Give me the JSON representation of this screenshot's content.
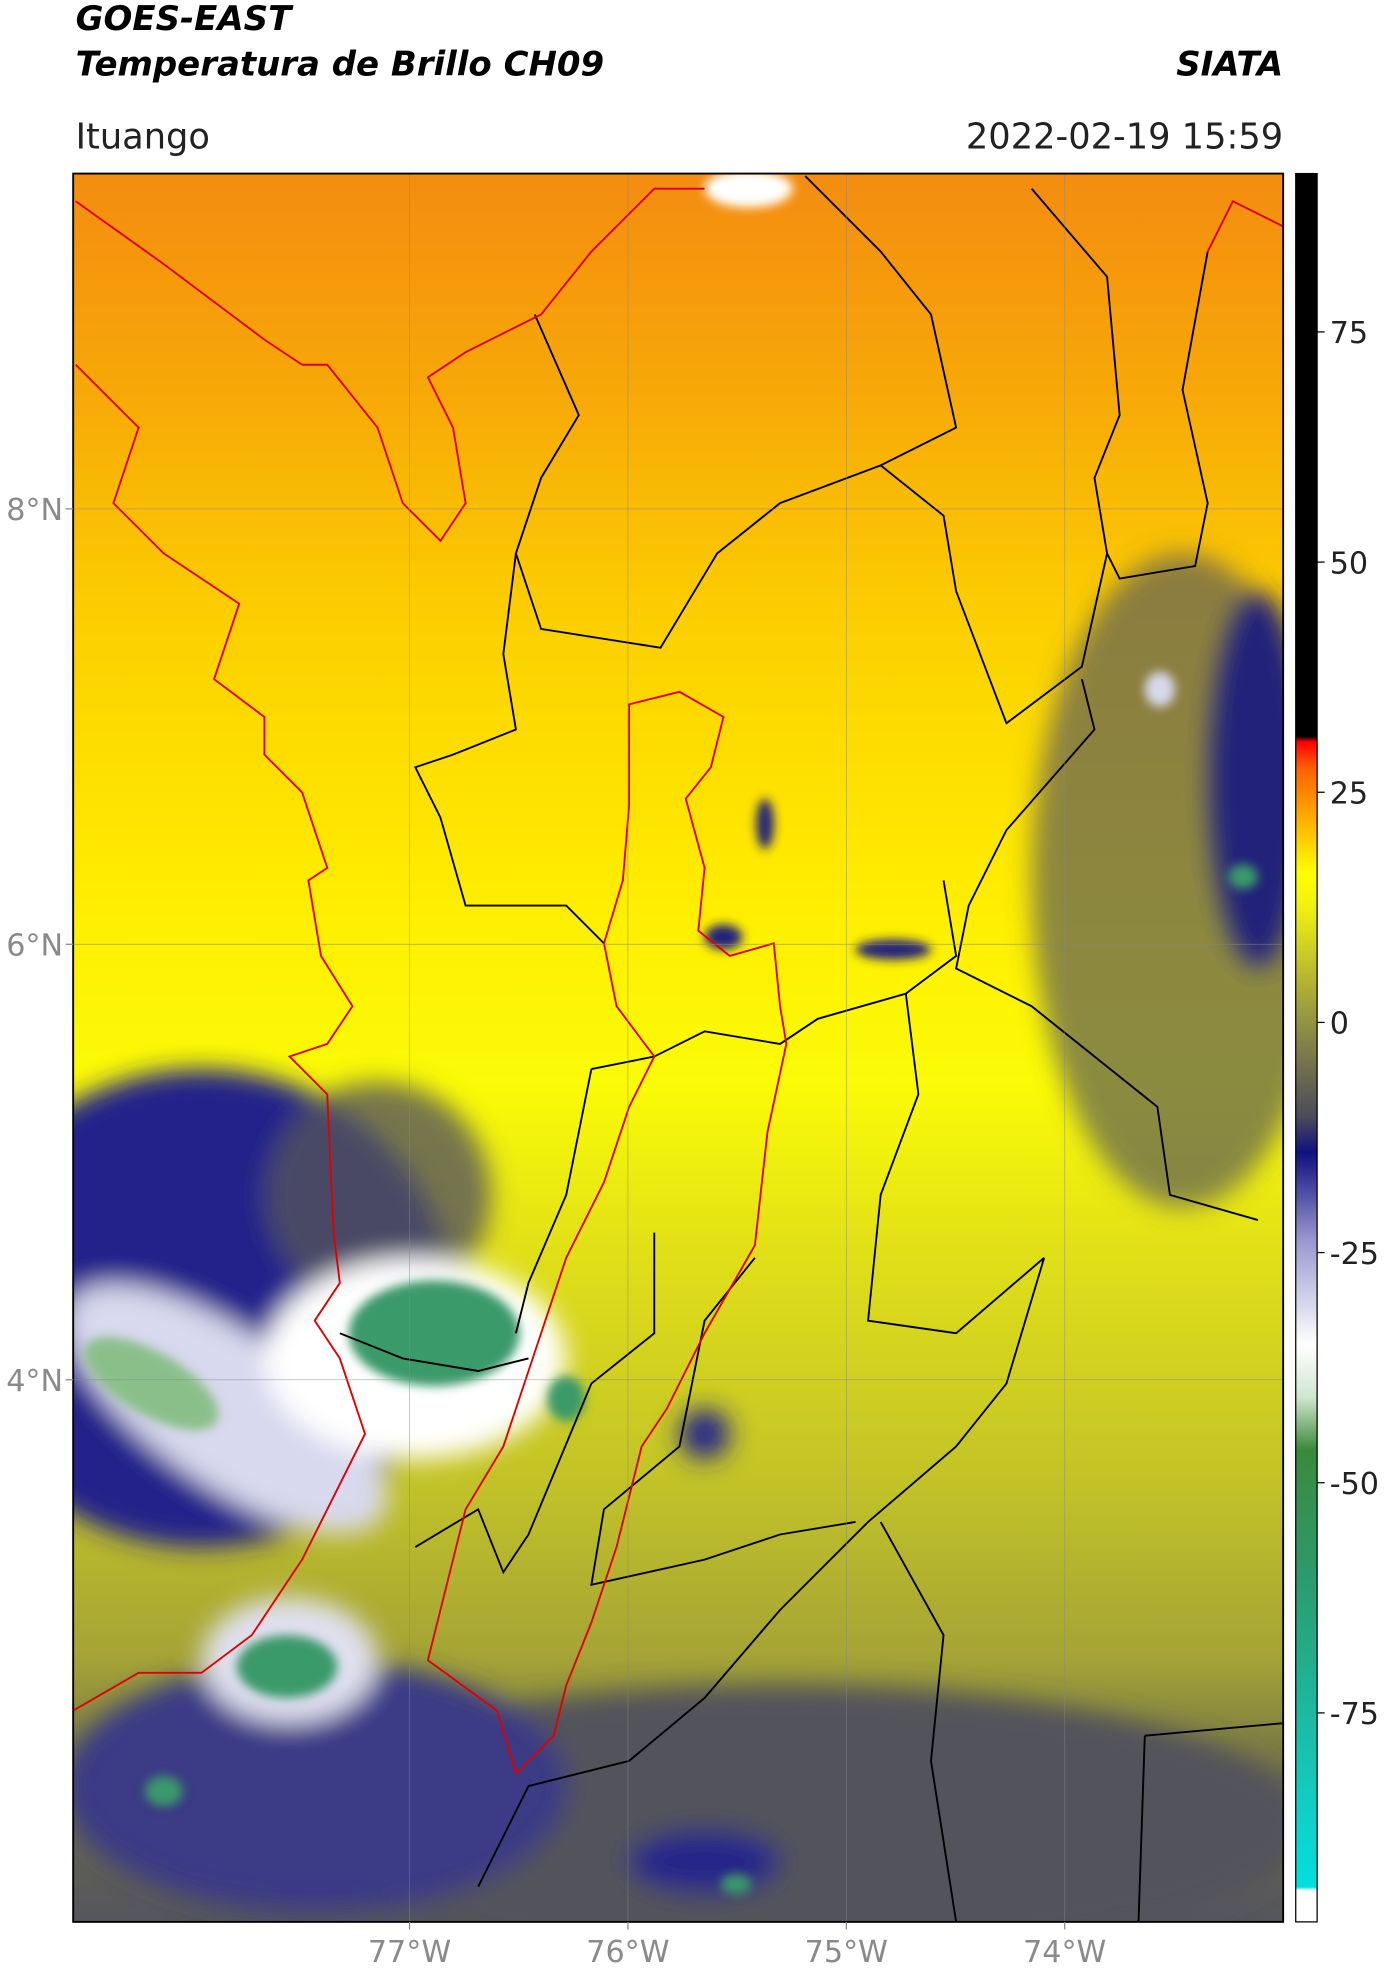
{
  "header": {
    "title": "GOES-EAST",
    "subtitle": "Temperatura de Brillo CH09",
    "agency": "SIATA",
    "location": "Ituango",
    "datetime": "2022-02-19 15:59"
  },
  "map": {
    "xlim": [
      -78.54,
      -73.0
    ],
    "ylim": [
      1.51,
      9.54
    ],
    "xticks": [
      {
        "value": -77,
        "label": "77°W"
      },
      {
        "value": -76,
        "label": "76°W"
      },
      {
        "value": -75,
        "label": "75°W"
      },
      {
        "value": -74,
        "label": "74°W"
      }
    ],
    "yticks": [
      {
        "value": 4,
        "label": "4°N"
      },
      {
        "value": 6,
        "label": "6°N"
      },
      {
        "value": 8,
        "label": "8°N"
      }
    ],
    "grid": true
  },
  "colorbar": {
    "lim": [
      -97.7,
      92.2
    ],
    "ticks": [
      -75,
      -50,
      -25,
      0,
      25,
      50,
      75
    ]
  }
}
